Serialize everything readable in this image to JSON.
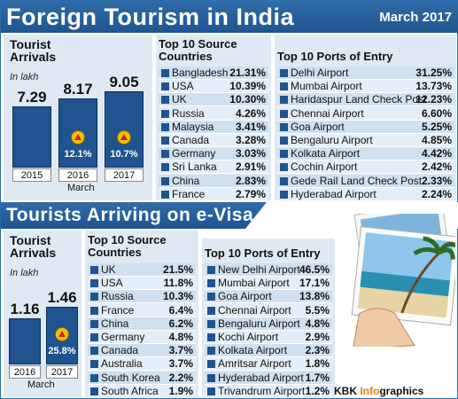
{
  "header": {
    "title": "Foreign Tourism in India",
    "date": "March 2017"
  },
  "section2": {
    "title": "Tourists Arriving on e-Visa"
  },
  "footer": {
    "credit_prefix": "KBK ",
    "credit_highlight": "Info",
    "credit_suffix": "graphics"
  },
  "colors": {
    "bar": "#1f5490",
    "panel": "#dfe9f3",
    "row": "#cfe0f0",
    "badge": "#f2c200"
  },
  "chart_data": [
    {
      "type": "bar",
      "title": "Tourist Arrivals",
      "subtitle": "In lakh",
      "categories": [
        "2015",
        "2016",
        "2017"
      ],
      "values": [
        7.29,
        8.17,
        9.05
      ],
      "value_labels": [
        "7.29",
        "8.17",
        "9.05"
      ],
      "growth_labels": [
        "",
        "12.1%",
        "10.7%"
      ],
      "xlabel": "March",
      "ylim": [
        0,
        10
      ]
    },
    {
      "type": "table",
      "title": "Top 10 Source Countries",
      "rows": [
        [
          "Bangladesh",
          "21.31%"
        ],
        [
          "USA",
          "10.39%"
        ],
        [
          "UK",
          "10.30%"
        ],
        [
          "Russia",
          "4.26%"
        ],
        [
          "Malaysia",
          "3.41%"
        ],
        [
          "Canada",
          "3.28%"
        ],
        [
          "Germany",
          "3.03%"
        ],
        [
          "Sri Lanka",
          "2.91%"
        ],
        [
          "China",
          "2.83%"
        ],
        [
          "France",
          "2.79%"
        ]
      ]
    },
    {
      "type": "table",
      "title": "Top 10 Ports of Entry",
      "rows": [
        [
          "Delhi Airport",
          "31.25%"
        ],
        [
          "Mumbai Airport",
          "13.73%"
        ],
        [
          "Haridaspur Land Check Post",
          "12.23%"
        ],
        [
          "Chennai Airport",
          "6.60%"
        ],
        [
          "Goa Airport",
          "5.25%"
        ],
        [
          "Bengaluru Airport",
          "4.85%"
        ],
        [
          "Kolkata Airport",
          "4.42%"
        ],
        [
          "Cochin Airport",
          "2.42%"
        ],
        [
          "Gede Rail Land Check Post",
          "2.33%"
        ],
        [
          "Hyderabad Airport",
          "2.24%"
        ]
      ]
    },
    {
      "type": "bar",
      "title": "Tourist Arrivals",
      "subtitle": "In lakh",
      "categories": [
        "2016",
        "2017"
      ],
      "values": [
        1.16,
        1.46
      ],
      "value_labels": [
        "1.16",
        "1.46"
      ],
      "growth_labels": [
        "",
        "25.8%"
      ],
      "xlabel": "March",
      "ylim": [
        0,
        1.8
      ]
    },
    {
      "type": "table",
      "title": "Top 10 Source Countries",
      "rows": [
        [
          "UK",
          "21.5%"
        ],
        [
          "USA",
          "11.8%"
        ],
        [
          "Russia",
          "10.3%"
        ],
        [
          "France",
          "6.4%"
        ],
        [
          "China",
          "6.2%"
        ],
        [
          "Germany",
          "4.8%"
        ],
        [
          "Canada",
          "3.7%"
        ],
        [
          "Australia",
          "3.7%"
        ],
        [
          "South Korea",
          "2.2%"
        ],
        [
          "South Africa",
          "1.9%"
        ]
      ]
    },
    {
      "type": "table",
      "title": "Top 10 Ports of Entry",
      "rows": [
        [
          "New Delhi Airport",
          "46.5%"
        ],
        [
          "Mumbai Airport",
          "17.1%"
        ],
        [
          "Goa Airport",
          "13.8%"
        ],
        [
          "Chennai Airport",
          "5.5%"
        ],
        [
          "Bengaluru Airport",
          "4.8%"
        ],
        [
          "Kochi Airport",
          "2.9%"
        ],
        [
          "Kolkata Airport",
          "2.3%"
        ],
        [
          "Amritsar Airport",
          "1.8%"
        ],
        [
          "Hyderabad Airport",
          "1.7%"
        ],
        [
          "Trivandrum Airport",
          "1.2%"
        ]
      ]
    }
  ]
}
